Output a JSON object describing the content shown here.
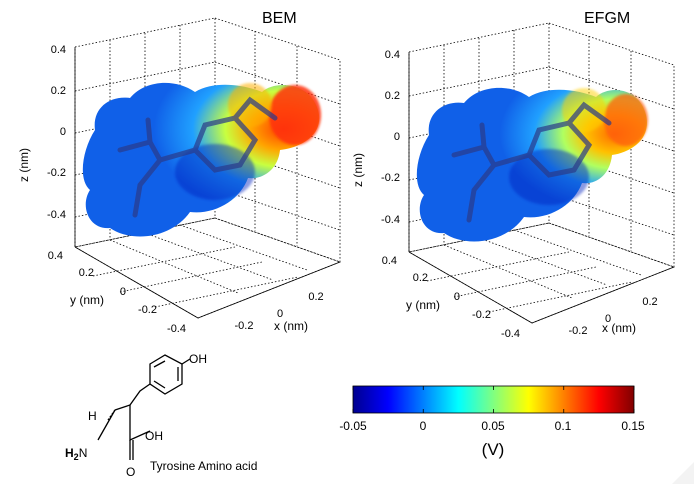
{
  "panels": [
    {
      "title": "BEM",
      "z_label": "z (nm)",
      "y_label": "y (nm)",
      "x_label": "x (nm)",
      "z_ticks": [
        "0.4",
        "0.2",
        "0",
        "-0.2",
        "-0.4"
      ],
      "y_ticks": [
        "0.4",
        "0.2",
        "0",
        "-0.2",
        "-0.4"
      ],
      "x_ticks": [
        "-0.2",
        "0",
        "0.2"
      ],
      "grid": true
    },
    {
      "title": "EFGM",
      "z_label": "z (nm)",
      "y_label": "y (nm)",
      "x_label": "x (nm)",
      "z_ticks": [
        "0.4",
        "0.2",
        "0",
        "-0.2",
        "-0.4"
      ],
      "y_ticks": [
        "0.4",
        "0.2",
        "0",
        "-0.2",
        "-0.4"
      ],
      "x_ticks": [
        "-0.2",
        "0",
        "0.2"
      ],
      "grid": true
    }
  ],
  "colorbar": {
    "tick_labels": [
      "-0.05",
      "0",
      "0.05",
      "0.1",
      "0.15"
    ],
    "range": [
      -0.05,
      0.15
    ],
    "unit_label": "(V)",
    "colormap": [
      "#00008f",
      "#0000ff",
      "#0080ff",
      "#00ffff",
      "#80ff80",
      "#ffff00",
      "#ff8000",
      "#ff0000",
      "#800000"
    ]
  },
  "molecule": {
    "caption": "Tyrosine Amino acid",
    "oh_top": "OH",
    "h_label": "H",
    "h2n_label": "H",
    "h2n_sub": "2",
    "h2n_n": "N",
    "acid_oh": "OH",
    "acid_o": "O"
  }
}
